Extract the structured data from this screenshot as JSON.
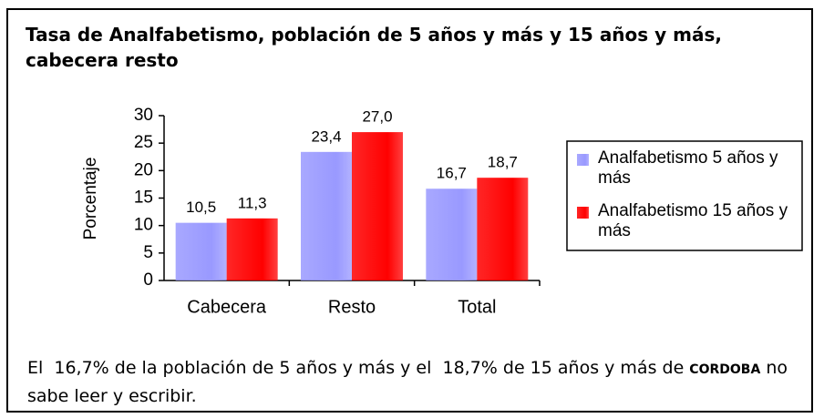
{
  "chart_data": {
    "type": "bar",
    "title": "Tasa de Analfabetismo, población de 5 años y más y 15 años y más, cabecera resto",
    "ylabel": "Porcentaje",
    "categories": [
      "Cabecera",
      "Resto",
      "Total"
    ],
    "series": [
      {
        "name": "Analfabetismo 5 años y más",
        "color": "#9999ff",
        "values": [
          10.5,
          23.4,
          16.7
        ],
        "value_labels": [
          "10,5",
          "23,4",
          "16,7"
        ]
      },
      {
        "name": "Analfabetismo 15 años y más",
        "color": "#ff0000",
        "values": [
          11.3,
          27.0,
          18.7
        ],
        "value_labels": [
          "11,3",
          "27,0",
          "18,7"
        ]
      }
    ],
    "ylim": [
      0,
      30
    ],
    "yticks": [
      0,
      5,
      10,
      15,
      20,
      25,
      30
    ],
    "grid": false,
    "legend": "right"
  },
  "caption": [
    "El  16,7% de la población de 5 años y más y el  18,7% de 15 años y más de ",
    "CORDOBA",
    " no sabe leer y escribir."
  ]
}
